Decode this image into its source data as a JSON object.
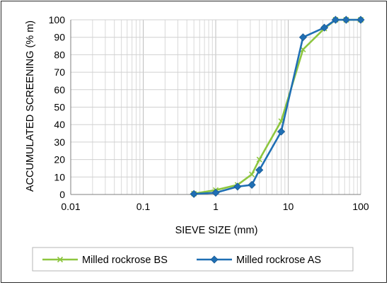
{
  "chart_data": {
    "type": "line",
    "xscale": "log",
    "xlim": [
      0.01,
      100
    ],
    "ylim": [
      0,
      100
    ],
    "x_ticks": [
      "0.01",
      "0.1",
      "1",
      "10",
      "100"
    ],
    "y_ticks": [
      "0",
      "10",
      "20",
      "30",
      "40",
      "50",
      "60",
      "70",
      "80",
      "90",
      "100"
    ],
    "xlabel": "SIEVE SIZE (mm)",
    "ylabel": "ACCUMULATED SCREENING  (% m)",
    "grid": true,
    "legend_position": "bottom",
    "series": [
      {
        "name": "Milled rockrose BS",
        "color": "#8dc63f",
        "marker": "x",
        "points": [
          [
            0.5,
            0.5
          ],
          [
            1,
            2.5
          ],
          [
            2,
            5.5
          ],
          [
            3.15,
            11.5
          ],
          [
            4,
            20
          ],
          [
            8,
            42
          ],
          [
            16,
            83
          ],
          [
            31.5,
            95
          ],
          [
            45,
            100
          ],
          [
            63,
            100
          ],
          [
            100,
            100
          ]
        ]
      },
      {
        "name": "Milled rockrose AS",
        "color": "#1f6fb4",
        "marker": "diamond",
        "points": [
          [
            0.5,
            0.3
          ],
          [
            1,
            1
          ],
          [
            2,
            4.5
          ],
          [
            3.15,
            5.5
          ],
          [
            4,
            14
          ],
          [
            8,
            36
          ],
          [
            16,
            90
          ],
          [
            31.5,
            95.5
          ],
          [
            45,
            100
          ],
          [
            63,
            100
          ],
          [
            100,
            100
          ]
        ]
      }
    ]
  }
}
